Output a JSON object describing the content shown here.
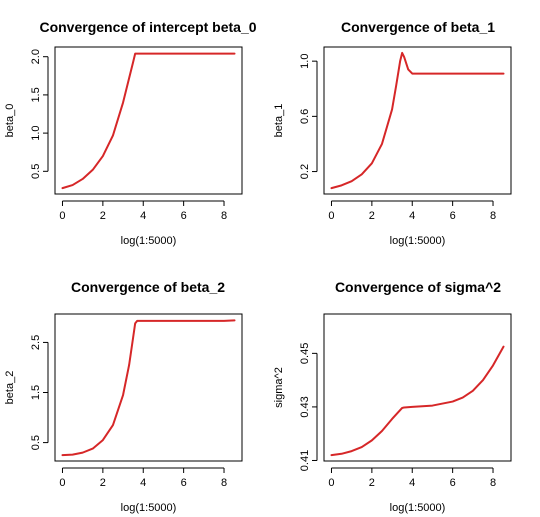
{
  "colors": {
    "curve": "#d62728",
    "axis": "#000000",
    "background": "#ffffff"
  },
  "chart_data": [
    {
      "type": "line",
      "title": "Convergence of intercept beta_0",
      "xlabel": "log(1:5000)",
      "ylabel": "beta_0",
      "xlim": [
        0,
        8.52
      ],
      "ylim": [
        0.28,
        2.05
      ],
      "xticks": [
        0,
        2,
        4,
        6,
        8
      ],
      "yticks": [
        0.5,
        1.0,
        1.5,
        2.0
      ],
      "ytick_labels": [
        "0.5",
        "1.0",
        "1.5",
        "2.0"
      ],
      "grid": false,
      "series": [
        {
          "x": [
            0,
            0.5,
            1.0,
            1.5,
            2.0,
            2.5,
            3.0,
            3.3,
            3.5,
            3.6,
            4.0,
            5.0,
            6.0,
            7.0,
            8.0,
            8.52
          ],
          "y": [
            0.28,
            0.32,
            0.4,
            0.52,
            0.7,
            0.97,
            1.4,
            1.72,
            1.93,
            2.04,
            2.04,
            2.04,
            2.04,
            2.04,
            2.04,
            2.04
          ]
        }
      ]
    },
    {
      "type": "line",
      "title": "Convergence of beta_1",
      "xlabel": "log(1:5000)",
      "ylabel": "beta_1",
      "xlim": [
        0,
        8.52
      ],
      "ylim": [
        0.08,
        1.06
      ],
      "xticks": [
        0,
        2,
        4,
        6,
        8
      ],
      "yticks": [
        0.2,
        0.6,
        1.0
      ],
      "ytick_labels": [
        "0.2",
        "0.6",
        "1.0"
      ],
      "grid": false,
      "series": [
        {
          "x": [
            0,
            0.5,
            1.0,
            1.5,
            2.0,
            2.5,
            3.0,
            3.2,
            3.4,
            3.5,
            3.6,
            3.8,
            4.0,
            5.0,
            6.0,
            7.0,
            8.0,
            8.52
          ],
          "y": [
            0.08,
            0.1,
            0.13,
            0.18,
            0.26,
            0.4,
            0.65,
            0.82,
            1.0,
            1.06,
            1.03,
            0.94,
            0.91,
            0.91,
            0.91,
            0.91,
            0.91,
            0.91
          ]
        }
      ]
    },
    {
      "type": "line",
      "title": "Convergence of beta_2",
      "xlabel": "log(1:5000)",
      "ylabel": "beta_2",
      "xlim": [
        0,
        8.52
      ],
      "ylim": [
        0.25,
        2.95
      ],
      "xticks": [
        0,
        2,
        4,
        6,
        8
      ],
      "yticks": [
        0.5,
        1.5,
        2.5
      ],
      "ytick_labels": [
        "0.5",
        "1.5",
        "2.5"
      ],
      "grid": false,
      "series": [
        {
          "x": [
            0,
            0.5,
            1.0,
            1.5,
            2.0,
            2.5,
            3.0,
            3.3,
            3.5,
            3.6,
            3.7,
            4.0,
            5.0,
            6.0,
            7.0,
            8.0,
            8.52
          ],
          "y": [
            0.25,
            0.26,
            0.3,
            0.38,
            0.55,
            0.85,
            1.45,
            2.05,
            2.6,
            2.88,
            2.93,
            2.93,
            2.93,
            2.93,
            2.93,
            2.93,
            2.94
          ]
        }
      ]
    },
    {
      "type": "line",
      "title": "Convergence of sigma^2",
      "xlabel": "log(1:5000)",
      "ylabel": "sigma^2",
      "xlim": [
        0,
        8.52
      ],
      "ylim": [
        0.412,
        0.4625
      ],
      "xticks": [
        0,
        2,
        4,
        6,
        8
      ],
      "yticks": [
        0.41,
        0.43,
        0.45
      ],
      "ytick_labels": [
        "0.41",
        "0.43",
        "0.45"
      ],
      "grid": false,
      "series": [
        {
          "x": [
            0,
            0.5,
            1.0,
            1.5,
            2.0,
            2.5,
            3.0,
            3.3,
            3.5,
            3.6,
            4.0,
            5.0,
            6.0,
            6.5,
            7.0,
            7.5,
            8.0,
            8.52
          ],
          "y": [
            0.412,
            0.4125,
            0.4135,
            0.415,
            0.4175,
            0.421,
            0.4255,
            0.428,
            0.4296,
            0.4298,
            0.43,
            0.4305,
            0.432,
            0.4335,
            0.436,
            0.44,
            0.4455,
            0.4525
          ]
        }
      ]
    }
  ]
}
